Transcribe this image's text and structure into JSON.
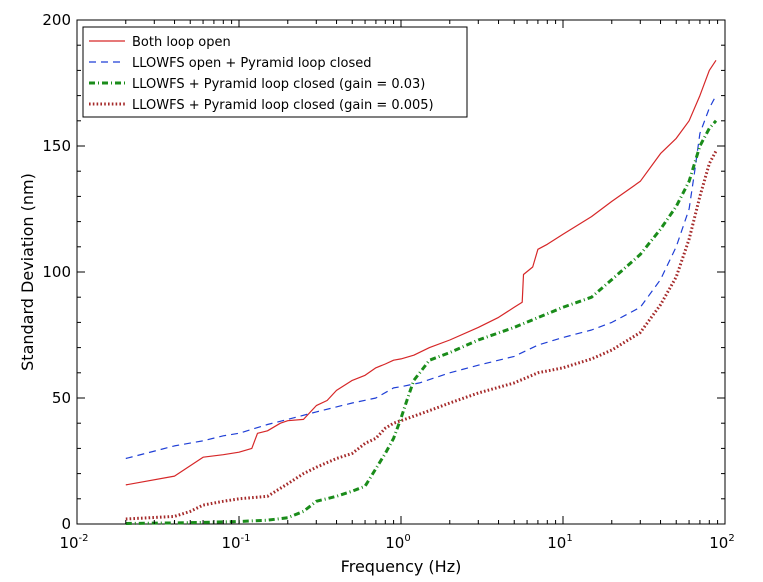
{
  "chart_data": {
    "type": "line",
    "title": "",
    "xlabel": "Frequency (Hz)",
    "ylabel": "Standard Deviation (nm)",
    "xscale": "log",
    "xlim": [
      0.01,
      100
    ],
    "ylim": [
      0,
      200
    ],
    "x_ticks": [
      {
        "base": "10",
        "exp": "-2",
        "value": 0.01
      },
      {
        "base": "10",
        "exp": "-1",
        "value": 0.1
      },
      {
        "base": "10",
        "exp": "0",
        "value": 1
      },
      {
        "base": "10",
        "exp": "1",
        "value": 10
      },
      {
        "base": "10",
        "exp": "2",
        "value": 100
      }
    ],
    "y_ticks": [
      {
        "label": "0",
        "value": 0
      },
      {
        "label": "50",
        "value": 50
      },
      {
        "label": "100",
        "value": 100
      },
      {
        "label": "150",
        "value": 150
      },
      {
        "label": "200",
        "value": 200
      }
    ],
    "grid": false,
    "legend_position": "top-left",
    "series": [
      {
        "name": "Both loop open",
        "color": "#d62728",
        "style": "solid",
        "points": [
          [
            0.02,
            15.5
          ],
          [
            0.04,
            19
          ],
          [
            0.06,
            26.5
          ],
          [
            0.08,
            27.5
          ],
          [
            0.1,
            28.5
          ],
          [
            0.12,
            30
          ],
          [
            0.13,
            36
          ],
          [
            0.15,
            37
          ],
          [
            0.18,
            40
          ],
          [
            0.2,
            41
          ],
          [
            0.25,
            41.5
          ],
          [
            0.3,
            47
          ],
          [
            0.35,
            49
          ],
          [
            0.4,
            53
          ],
          [
            0.5,
            57
          ],
          [
            0.6,
            59
          ],
          [
            0.7,
            62
          ],
          [
            0.8,
            63.5
          ],
          [
            0.9,
            65
          ],
          [
            1.0,
            65.5
          ],
          [
            1.2,
            67
          ],
          [
            1.5,
            70
          ],
          [
            2,
            73
          ],
          [
            3,
            78
          ],
          [
            4,
            82
          ],
          [
            5,
            86
          ],
          [
            5.6,
            88
          ],
          [
            5.7,
            99
          ],
          [
            6.5,
            102
          ],
          [
            7,
            109
          ],
          [
            8,
            111
          ],
          [
            10,
            115
          ],
          [
            15,
            122
          ],
          [
            20,
            128
          ],
          [
            30,
            136
          ],
          [
            40,
            147
          ],
          [
            50,
            153
          ],
          [
            60,
            160
          ],
          [
            70,
            170
          ],
          [
            80,
            180
          ],
          [
            88,
            184
          ]
        ]
      },
      {
        "name": "LLOWFS open + Pyramid loop closed",
        "color": "#1f3fd6",
        "style": "dashed",
        "points": [
          [
            0.02,
            26
          ],
          [
            0.04,
            31
          ],
          [
            0.06,
            33
          ],
          [
            0.08,
            35
          ],
          [
            0.1,
            36
          ],
          [
            0.15,
            39.5
          ],
          [
            0.2,
            41.5
          ],
          [
            0.3,
            44.5
          ],
          [
            0.5,
            48
          ],
          [
            0.7,
            50
          ],
          [
            0.9,
            54
          ],
          [
            1.0,
            54.5
          ],
          [
            1.3,
            56
          ],
          [
            2,
            60
          ],
          [
            3,
            63
          ],
          [
            5,
            66.5
          ],
          [
            7,
            71
          ],
          [
            10,
            74
          ],
          [
            15,
            77
          ],
          [
            20,
            80
          ],
          [
            30,
            86
          ],
          [
            40,
            97
          ],
          [
            50,
            110
          ],
          [
            60,
            125
          ],
          [
            65,
            140
          ],
          [
            70,
            155
          ],
          [
            80,
            165
          ],
          [
            88,
            170
          ]
        ]
      },
      {
        "name": "LLOWFS + Pyramid loop closed (gain = 0.03)",
        "color": "#1a8c1a",
        "style": "dashdot",
        "points": [
          [
            0.02,
            0.2
          ],
          [
            0.05,
            0.5
          ],
          [
            0.1,
            1
          ],
          [
            0.15,
            1.5
          ],
          [
            0.2,
            2.5
          ],
          [
            0.25,
            5
          ],
          [
            0.3,
            9
          ],
          [
            0.4,
            11
          ],
          [
            0.5,
            13
          ],
          [
            0.6,
            15
          ],
          [
            0.7,
            22
          ],
          [
            0.8,
            28
          ],
          [
            0.9,
            34
          ],
          [
            1.0,
            42
          ],
          [
            1.1,
            50
          ],
          [
            1.2,
            57
          ],
          [
            1.5,
            65
          ],
          [
            2,
            68
          ],
          [
            3,
            73
          ],
          [
            5,
            78
          ],
          [
            10,
            86
          ],
          [
            15,
            90
          ],
          [
            20,
            97
          ],
          [
            30,
            107
          ],
          [
            40,
            117
          ],
          [
            50,
            126
          ],
          [
            60,
            136
          ],
          [
            70,
            150
          ],
          [
            80,
            157
          ],
          [
            88,
            160
          ]
        ]
      },
      {
        "name": "LLOWFS + Pyramid loop closed (gain = 0.005)",
        "color": "#a52a2a",
        "style": "dotted",
        "points": [
          [
            0.02,
            2
          ],
          [
            0.04,
            3
          ],
          [
            0.05,
            5
          ],
          [
            0.06,
            7.5
          ],
          [
            0.08,
            9
          ],
          [
            0.1,
            10
          ],
          [
            0.15,
            11
          ],
          [
            0.2,
            16
          ],
          [
            0.25,
            20
          ],
          [
            0.3,
            22.5
          ],
          [
            0.4,
            26
          ],
          [
            0.5,
            28
          ],
          [
            0.6,
            32
          ],
          [
            0.7,
            34
          ],
          [
            0.8,
            38
          ],
          [
            0.9,
            40
          ],
          [
            1.0,
            41
          ],
          [
            1.5,
            45
          ],
          [
            2,
            48
          ],
          [
            3,
            52
          ],
          [
            5,
            56
          ],
          [
            7,
            60
          ],
          [
            10,
            62
          ],
          [
            15,
            65.5
          ],
          [
            20,
            69
          ],
          [
            30,
            76
          ],
          [
            40,
            87
          ],
          [
            50,
            98
          ],
          [
            60,
            113
          ],
          [
            70,
            130
          ],
          [
            80,
            143
          ],
          [
            88,
            148
          ]
        ]
      }
    ]
  }
}
